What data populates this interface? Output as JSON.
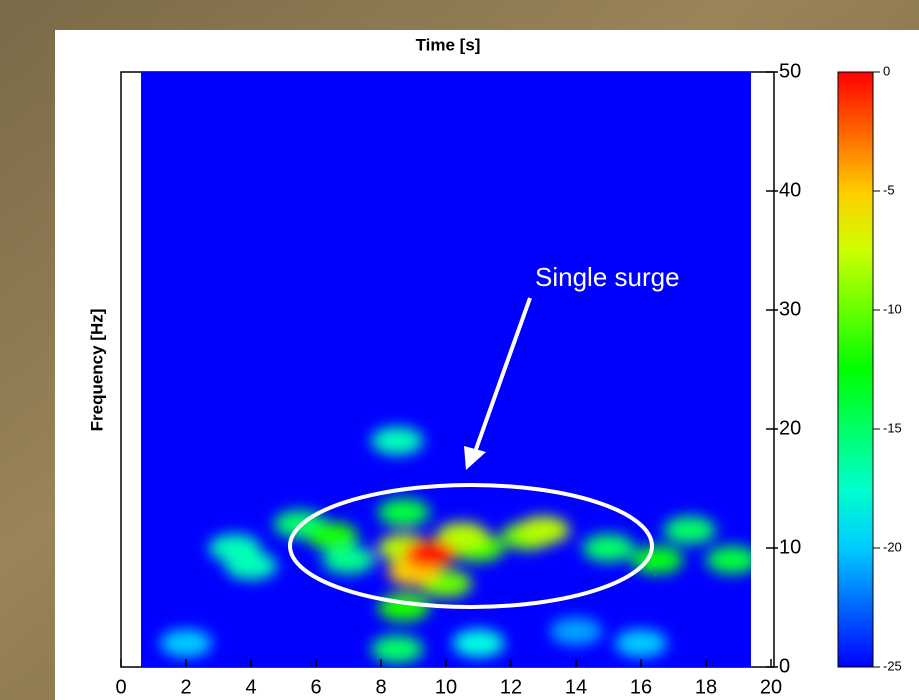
{
  "chart_data": {
    "type": "heatmap",
    "title": "Time [s]",
    "y_label": "Frequency [Hz]",
    "annotation": "Single surge",
    "x": [
      2,
      11,
      14,
      16,
      3.5,
      4,
      8.5,
      5.5,
      7,
      15,
      17.5,
      8.7,
      8.5,
      18.8,
      6.5,
      11,
      16.5,
      12.5,
      10,
      8.7,
      13,
      10.5,
      8.7,
      9,
      9.5
    ],
    "y": [
      2,
      2,
      3,
      2,
      10,
      8.5,
      19,
      12,
      9,
      10,
      11.5,
      13,
      1.5,
      9,
      11,
      10,
      9,
      11,
      7,
      5,
      11.5,
      11,
      10,
      8,
      9.5
    ],
    "values": [
      -20,
      -18,
      -21,
      -20,
      -17,
      -17,
      -17,
      -15,
      -16,
      -15,
      -15,
      -14,
      -15,
      -14,
      -12,
      -11,
      -13,
      -10,
      -10,
      -12,
      -8,
      -8,
      -8,
      -5,
      0
    ],
    "xlim": [
      0,
      20
    ],
    "ylim": [
      0,
      50
    ],
    "clim": [
      -25,
      0
    ],
    "xticks": [
      0,
      2,
      4,
      6,
      8,
      10,
      12,
      14,
      16,
      18,
      20
    ],
    "yticks": [
      0,
      10,
      20,
      30,
      40,
      50
    ],
    "cticks": [
      0,
      -5,
      -10,
      -15,
      -20,
      -25
    ]
  }
}
